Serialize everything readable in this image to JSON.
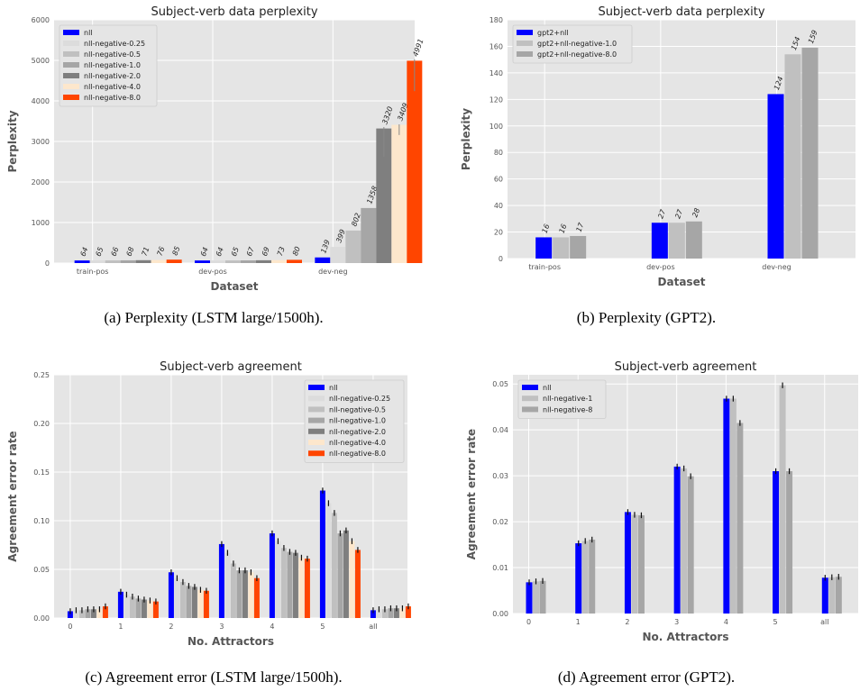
{
  "colors": {
    "panel_bg": "#e5e5e5",
    "grid": "#ffffff",
    "nll": "#0000ff",
    "g025": "#dcdcdc",
    "g05": "#c0c0c0",
    "g10": "#a6a6a6",
    "g20": "#7f7f7f",
    "g40": "#fde7cc",
    "g80": "#ff4500"
  },
  "captions": {
    "a": "(a) Perplexity (LSTM large/1500h).",
    "b": "(b) Perplexity (GPT2).",
    "c": "(c) Agreement error (LSTM large/1500h).",
    "d": "(d) Agreement error (GPT2)."
  },
  "chart_data": [
    {
      "type": "bar",
      "title": "Subject-verb data perplexity",
      "xlabel": "Dataset",
      "ylabel": "Perplexity",
      "ylim": [
        0,
        6000
      ],
      "yticks": [
        0,
        1000,
        2000,
        3000,
        4000,
        5000,
        6000
      ],
      "grid": true,
      "legend_position": "top-left",
      "categories": [
        "train-pos",
        "dev-pos",
        "dev-neg"
      ],
      "data_labels": true,
      "series": [
        {
          "name": "nll",
          "color_key": "nll",
          "values": [
            64,
            64,
            139
          ],
          "err": [
            0,
            0,
            0
          ]
        },
        {
          "name": "nll-negative-0.25",
          "color_key": "g025",
          "values": [
            65,
            64,
            399
          ],
          "err": [
            0,
            0,
            0
          ]
        },
        {
          "name": "nll-negative-0.5",
          "color_key": "g05",
          "values": [
            66,
            65,
            802
          ],
          "err": [
            0,
            0,
            0
          ]
        },
        {
          "name": "nll-negative-1.0",
          "color_key": "g10",
          "values": [
            68,
            67,
            1358
          ],
          "err": [
            0,
            0,
            0
          ]
        },
        {
          "name": "nll-negative-2.0",
          "color_key": "g20",
          "values": [
            71,
            69,
            3320
          ],
          "err": [
            0,
            0,
            700
          ]
        },
        {
          "name": "nll-negative-4.0",
          "color_key": "g40",
          "values": [
            76,
            73,
            3409
          ],
          "err": [
            0,
            0,
            250
          ]
        },
        {
          "name": "nll-negative-8.0",
          "color_key": "g80",
          "values": [
            85,
            80,
            4991
          ],
          "err": [
            0,
            0,
            750
          ]
        }
      ]
    },
    {
      "type": "bar",
      "title": "Subject-verb data perplexity",
      "xlabel": "Dataset",
      "ylabel": "Perplexity",
      "ylim": [
        0,
        180
      ],
      "yticks": [
        0,
        20,
        40,
        60,
        80,
        100,
        120,
        140,
        160,
        180
      ],
      "grid": true,
      "legend_position": "top-left",
      "categories": [
        "train-pos",
        "dev-pos",
        "dev-neg"
      ],
      "data_labels": true,
      "series": [
        {
          "name": "gpt2+nll",
          "color_key": "nll",
          "values": [
            16,
            27,
            124
          ]
        },
        {
          "name": "gpt2+nll-negative-1.0",
          "color_key": "g05",
          "values": [
            16,
            27,
            154
          ]
        },
        {
          "name": "gpt2+nll-negative-8.0",
          "color_key": "g10",
          "values": [
            17,
            28,
            159
          ]
        }
      ]
    },
    {
      "type": "bar",
      "title": "Subject-verb agreement",
      "xlabel": "No. Attractors",
      "ylabel": "Agreement error rate",
      "ylim": [
        0,
        0.25
      ],
      "yticks": [
        0.0,
        0.05,
        0.1,
        0.15,
        0.2,
        0.25
      ],
      "ytick_labels": [
        "0.00",
        "0.05",
        "0.10",
        "0.15",
        "0.20",
        "0.25"
      ],
      "grid": true,
      "legend_position": "top-right",
      "categories": [
        "0",
        "1",
        "2",
        "3",
        "4",
        "5",
        "all"
      ],
      "data_labels": false,
      "series": [
        {
          "name": "nll",
          "color_key": "nll",
          "values": [
            0.007,
            0.027,
            0.047,
            0.076,
            0.087,
            0.131,
            0.008
          ]
        },
        {
          "name": "nll-negative-0.25",
          "color_key": "g025",
          "values": [
            0.008,
            0.024,
            0.041,
            0.067,
            0.079,
            0.118,
            0.009
          ]
        },
        {
          "name": "nll-negative-0.5",
          "color_key": "g05",
          "values": [
            0.008,
            0.022,
            0.037,
            0.056,
            0.072,
            0.108,
            0.009
          ]
        },
        {
          "name": "nll-negative-1.0",
          "color_key": "g10",
          "values": [
            0.009,
            0.02,
            0.033,
            0.049,
            0.068,
            0.087,
            0.01
          ]
        },
        {
          "name": "nll-negative-2.0",
          "color_key": "g20",
          "values": [
            0.009,
            0.019,
            0.032,
            0.049,
            0.067,
            0.09,
            0.01
          ]
        },
        {
          "name": "nll-negative-4.0",
          "color_key": "g40",
          "values": [
            0.009,
            0.018,
            0.029,
            0.047,
            0.062,
            0.079,
            0.01
          ]
        },
        {
          "name": "nll-negative-8.0",
          "color_key": "g80",
          "values": [
            0.012,
            0.017,
            0.028,
            0.041,
            0.061,
            0.07,
            0.012
          ]
        }
      ]
    },
    {
      "type": "bar",
      "title": "Subject-verb agreement",
      "xlabel": "No. Attractors",
      "ylabel": "Agreement error rate",
      "ylim": [
        0,
        0.052
      ],
      "yticks": [
        0.0,
        0.01,
        0.02,
        0.03,
        0.04,
        0.05
      ],
      "ytick_labels": [
        "0.00",
        "0.01",
        "0.02",
        "0.03",
        "0.04",
        "0.05"
      ],
      "grid": true,
      "legend_position": "top-left",
      "categories": [
        "0",
        "1",
        "2",
        "3",
        "4",
        "5",
        "all"
      ],
      "data_labels": false,
      "series": [
        {
          "name": "nll",
          "color_key": "nll",
          "values": [
            0.0068,
            0.0153,
            0.0221,
            0.032,
            0.0468,
            0.031,
            0.0078
          ]
        },
        {
          "name": "nll-negative-1",
          "color_key": "g05",
          "values": [
            0.007,
            0.0158,
            0.0215,
            0.0316,
            0.0468,
            0.0497,
            0.0079
          ]
        },
        {
          "name": "nll-negative-8",
          "color_key": "g10",
          "values": [
            0.0071,
            0.0161,
            0.0214,
            0.0299,
            0.0415,
            0.031,
            0.008
          ]
        }
      ]
    }
  ]
}
